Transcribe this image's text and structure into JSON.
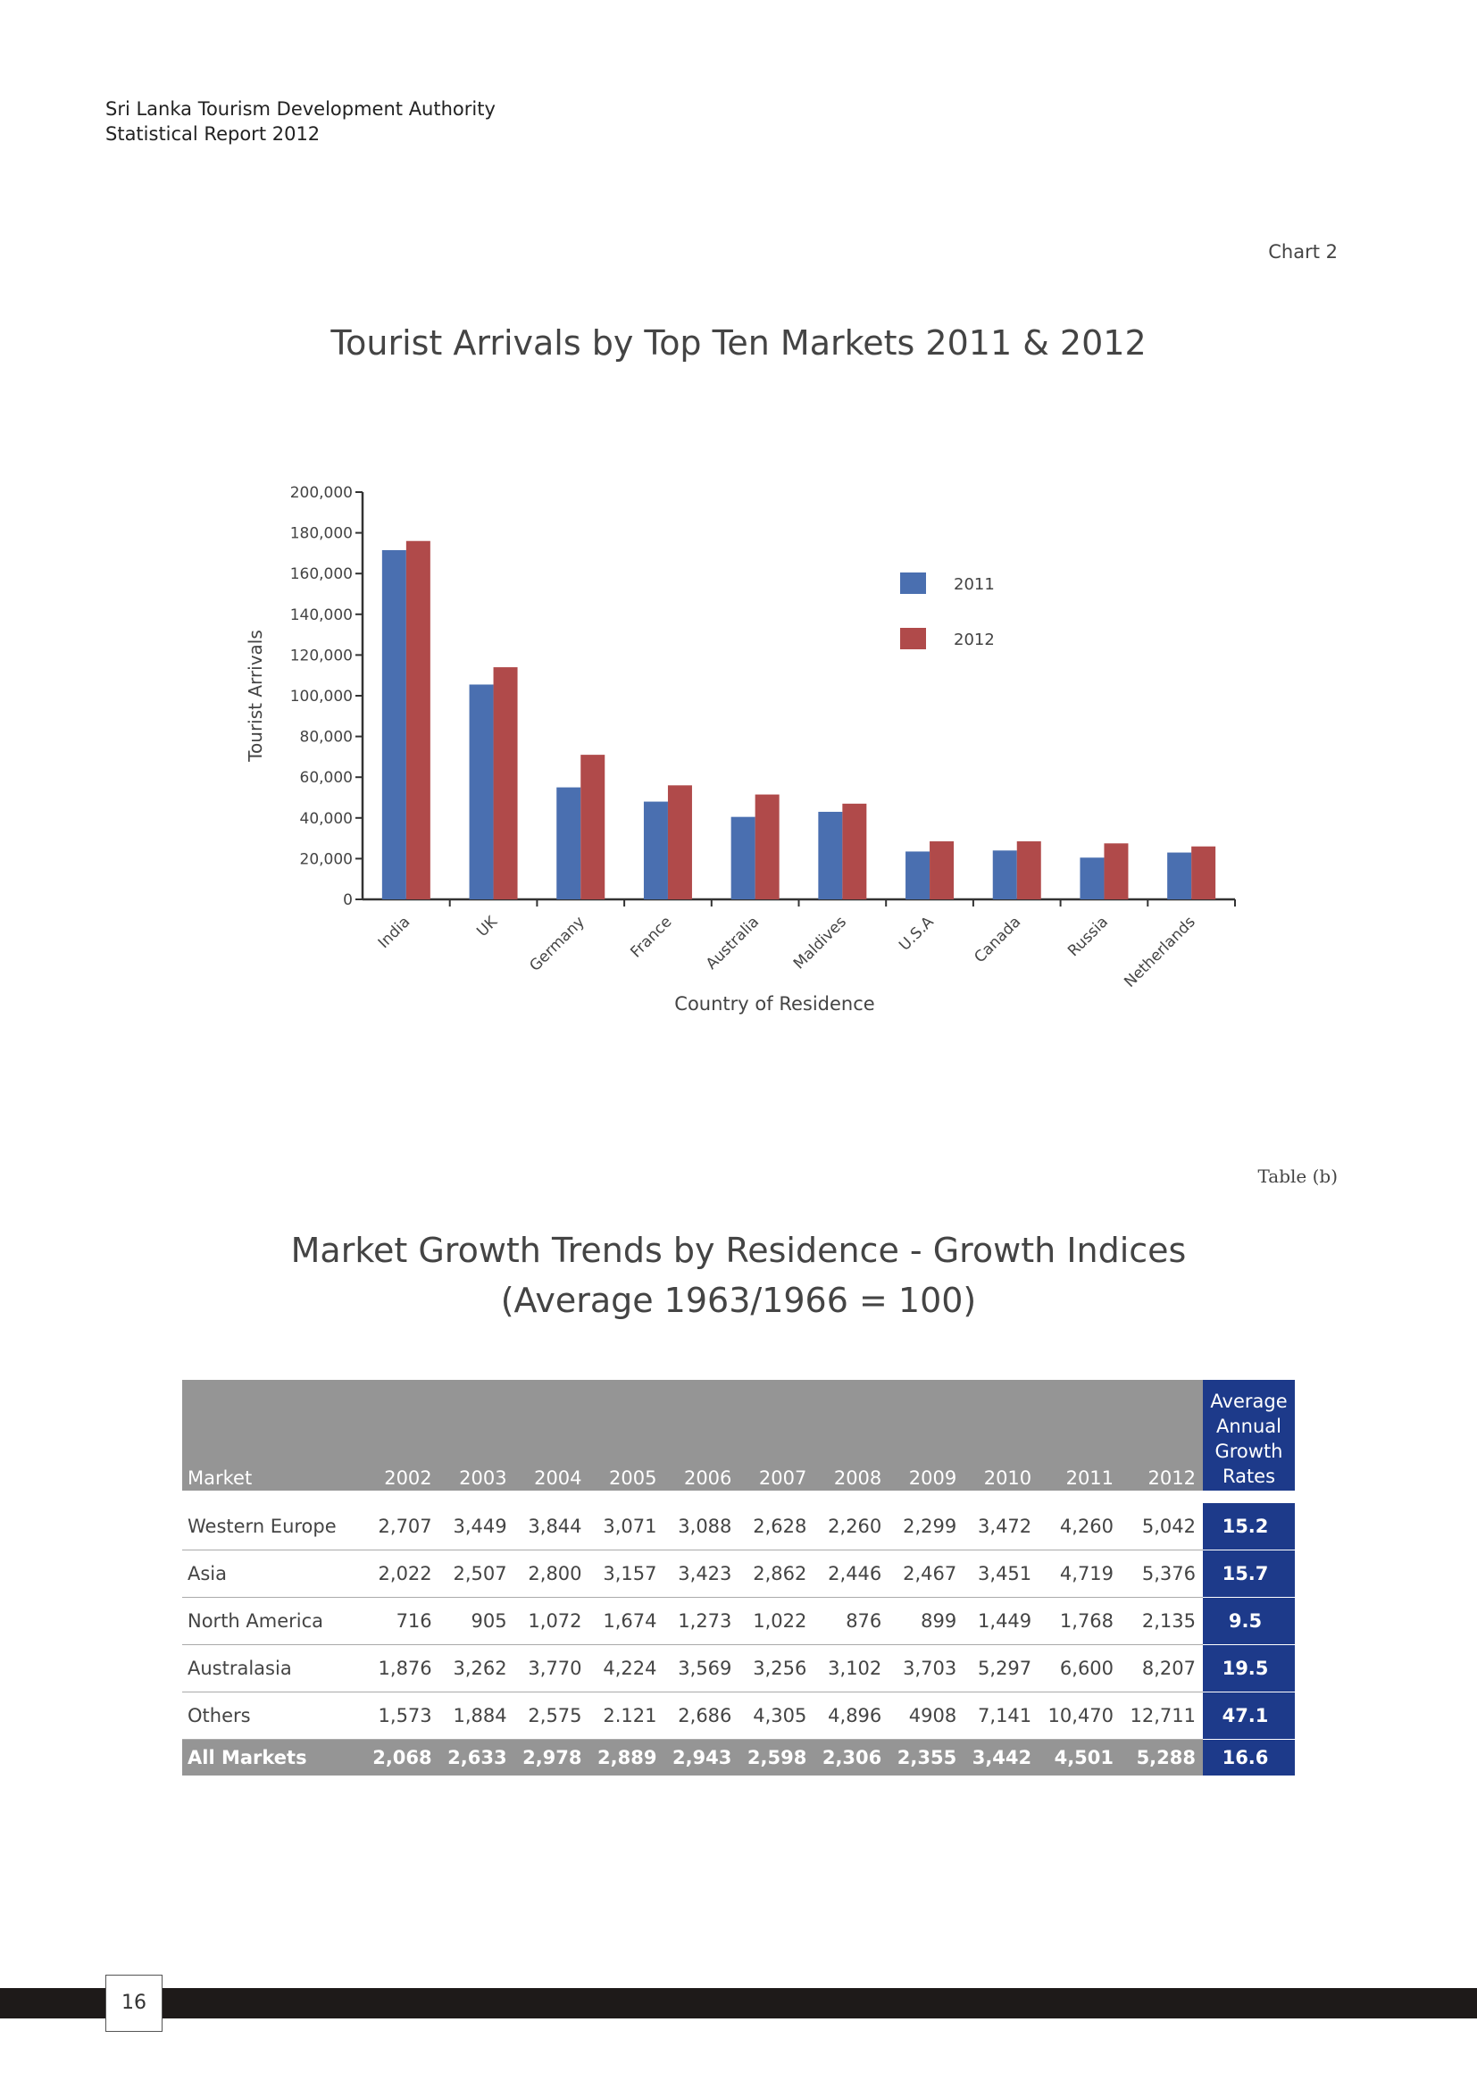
{
  "header": {
    "org": "Sri Lanka Tourism Development Authority",
    "report": "Statistical Report 2012"
  },
  "chart_section": {
    "label": "Chart 2",
    "title": "Tourist Arrivals by Top Ten Markets 2011 & 2012"
  },
  "chart_data": {
    "type": "bar",
    "title": "Tourist Arrivals by Top Ten Markets 2011 & 2012",
    "xlabel": "Country of Residence",
    "ylabel": "Tourist Arrivals",
    "ylim": [
      0,
      200000
    ],
    "y_ticks": [
      "0",
      "20,000",
      "40,000",
      "60,000",
      "80,000",
      "100,000",
      "120,000",
      "140,000",
      "160,000",
      "180,000",
      "200,000"
    ],
    "categories": [
      "India",
      "UK",
      "Germany",
      "France",
      "Australia",
      "Maldives",
      "U.S.A",
      "Canada",
      "Russia",
      "Netherlands"
    ],
    "series": [
      {
        "name": "2011",
        "color": "#4a6fb0",
        "values": [
          171500,
          105500,
          55000,
          48000,
          40500,
          43000,
          23500,
          24000,
          20500,
          23000
        ]
      },
      {
        "name": "2012",
        "color": "#b04a4a",
        "values": [
          176000,
          114000,
          71000,
          56000,
          51500,
          47000,
          28500,
          28500,
          27500,
          26000
        ]
      }
    ],
    "legend_position": "top-right",
    "grid": false
  },
  "table_section": {
    "label": "Table (b)",
    "title_line1": "Market Growth Trends by Residence - Growth Indices",
    "title_line2": "(Average 1963/1966 = 100)",
    "columns": [
      "Market",
      "2002",
      "2003",
      "2004",
      "2005",
      "2006",
      "2007",
      "2008",
      "2009",
      "2010",
      "2011",
      "2012"
    ],
    "avg_header": "Average Annual Growth Rates",
    "rows": [
      {
        "market": "Western Europe",
        "values": [
          "2,707",
          "3,449",
          "3,844",
          "3,071",
          "3,088",
          "2,628",
          "2,260",
          "2,299",
          "3,472",
          "4,260",
          "5,042"
        ],
        "avg": "15.2"
      },
      {
        "market": "Asia",
        "values": [
          "2,022",
          "2,507",
          "2,800",
          "3,157",
          "3,423",
          "2,862",
          "2,446",
          "2,467",
          "3,451",
          "4,719",
          "5,376"
        ],
        "avg": "15.7"
      },
      {
        "market": "North America",
        "values": [
          "716",
          "905",
          "1,072",
          "1,674",
          "1,273",
          "1,022",
          "876",
          "899",
          "1,449",
          "1,768",
          "2,135"
        ],
        "avg": "9.5"
      },
      {
        "market": "Australasia",
        "values": [
          "1,876",
          "3,262",
          "3,770",
          "4,224",
          "3,569",
          "3,256",
          "3,102",
          "3,703",
          "5,297",
          "6,600",
          "8,207"
        ],
        "avg": "19.5"
      },
      {
        "market": "Others",
        "values": [
          "1,573",
          "1,884",
          "2,575",
          "2.121",
          "2,686",
          "4,305",
          "4,896",
          "4908",
          "7,141",
          "10,470",
          "12,711"
        ],
        "avg": "47.1"
      }
    ],
    "total": {
      "market": "All Markets",
      "values": [
        "2,068",
        "2,633",
        "2,978",
        "2,889",
        "2,943",
        "2,598",
        "2,306",
        "2,355",
        "3,442",
        "4,501",
        "5,288"
      ],
      "avg": "16.6"
    }
  },
  "page_number": "16"
}
